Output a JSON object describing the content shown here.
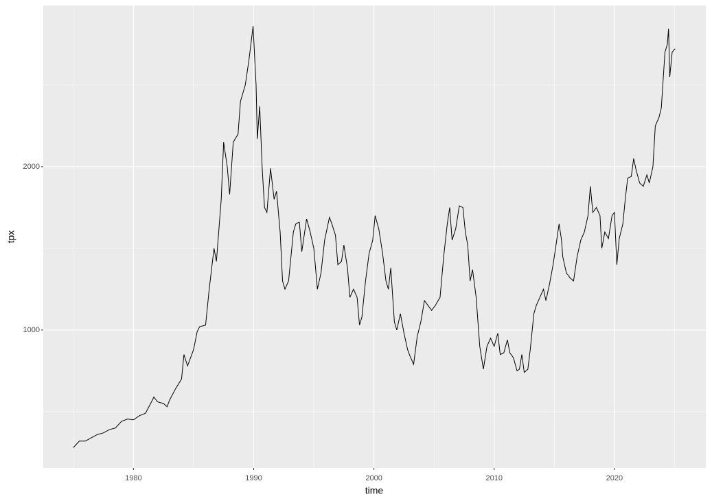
{
  "chart_data": {
    "type": "line",
    "x_label": "time",
    "y_label": "tpx",
    "color": "#000000",
    "grid": true,
    "xlim": [
      1972.5,
      2027.6
    ],
    "ylim": [
      155,
      2987
    ],
    "xticks": [
      1980,
      1990,
      2000,
      2010,
      2020
    ],
    "minor_xticks": [
      1975,
      1985,
      1995,
      2005,
      2015,
      2025
    ],
    "yticks": [
      1000,
      2000
    ],
    "minor_yticks": [
      500,
      1500,
      2500
    ],
    "x": [
      1975.0,
      1975.5,
      1976.0,
      1976.5,
      1977.0,
      1977.5,
      1978.0,
      1978.5,
      1979.0,
      1979.5,
      1980.0,
      1980.5,
      1981.0,
      1981.5,
      1981.7,
      1982.0,
      1982.5,
      1982.8,
      1983.0,
      1983.5,
      1984.0,
      1984.2,
      1984.5,
      1985.0,
      1985.3,
      1985.5,
      1986.0,
      1986.3,
      1986.7,
      1986.9,
      1987.3,
      1987.5,
      1987.8,
      1988.0,
      1988.3,
      1988.7,
      1988.9,
      1989.3,
      1989.6,
      1989.95,
      1990.2,
      1990.3,
      1990.5,
      1990.7,
      1990.9,
      1991.1,
      1991.4,
      1991.7,
      1991.9,
      1992.2,
      1992.4,
      1992.6,
      1992.9,
      1993.3,
      1993.5,
      1993.8,
      1994.0,
      1994.4,
      1994.7,
      1995.0,
      1995.3,
      1995.6,
      1995.9,
      1996.3,
      1996.5,
      1996.8,
      1997.0,
      1997.3,
      1997.5,
      1997.8,
      1998.0,
      1998.3,
      1998.6,
      1998.8,
      1999.0,
      1999.3,
      1999.6,
      1999.9,
      2000.1,
      2000.4,
      2000.7,
      2001.0,
      2001.2,
      2001.4,
      2001.7,
      2001.9,
      2002.2,
      2002.5,
      2002.8,
      2003.0,
      2003.3,
      2003.6,
      2003.9,
      2004.2,
      2004.5,
      2004.8,
      2005.1,
      2005.5,
      2005.8,
      2006.1,
      2006.3,
      2006.5,
      2006.8,
      2007.1,
      2007.4,
      2007.6,
      2007.8,
      2008.0,
      2008.2,
      2008.5,
      2008.8,
      2009.1,
      2009.4,
      2009.7,
      2010.0,
      2010.3,
      2010.5,
      2010.8,
      2011.1,
      2011.3,
      2011.6,
      2011.9,
      2012.1,
      2012.3,
      2012.5,
      2012.8,
      2013.0,
      2013.3,
      2013.5,
      2013.8,
      2014.1,
      2014.3,
      2014.6,
      2014.9,
      2015.2,
      2015.4,
      2015.6,
      2015.7,
      2016.0,
      2016.3,
      2016.6,
      2016.9,
      2017.2,
      2017.5,
      2017.8,
      2018.0,
      2018.2,
      2018.5,
      2018.8,
      2018.95,
      2019.2,
      2019.5,
      2019.8,
      2020.0,
      2020.2,
      2020.4,
      2020.7,
      2020.9,
      2021.1,
      2021.4,
      2021.6,
      2021.8,
      2022.1,
      2022.4,
      2022.7,
      2022.9,
      2023.2,
      2023.4,
      2023.7,
      2023.9,
      2024.2,
      2024.4,
      2024.5,
      2024.6,
      2024.8,
      2025.0,
      2025.08
    ],
    "values": [
      280,
      320,
      320,
      340,
      360,
      370,
      390,
      400,
      440,
      455,
      450,
      475,
      490,
      560,
      590,
      560,
      550,
      530,
      570,
      640,
      700,
      850,
      780,
      880,
      990,
      1020,
      1030,
      1250,
      1500,
      1420,
      1800,
      2150,
      2000,
      1830,
      2150,
      2200,
      2400,
      2500,
      2650,
      2860,
      2500,
      2170,
      2370,
      2000,
      1750,
      1720,
      1990,
      1800,
      1850,
      1600,
      1300,
      1250,
      1300,
      1600,
      1650,
      1660,
      1480,
      1680,
      1600,
      1500,
      1250,
      1350,
      1550,
      1690,
      1650,
      1580,
      1400,
      1420,
      1520,
      1380,
      1200,
      1250,
      1200,
      1030,
      1080,
      1300,
      1470,
      1550,
      1700,
      1620,
      1480,
      1300,
      1250,
      1380,
      1050,
      1000,
      1100,
      980,
      880,
      840,
      790,
      960,
      1050,
      1180,
      1150,
      1120,
      1150,
      1200,
      1450,
      1650,
      1750,
      1550,
      1620,
      1760,
      1750,
      1600,
      1520,
      1300,
      1370,
      1200,
      900,
      760,
      900,
      950,
      900,
      980,
      850,
      860,
      940,
      860,
      830,
      750,
      760,
      850,
      740,
      760,
      880,
      1100,
      1150,
      1200,
      1250,
      1180,
      1280,
      1400,
      1550,
      1650,
      1550,
      1450,
      1350,
      1320,
      1300,
      1450,
      1550,
      1600,
      1700,
      1880,
      1720,
      1750,
      1700,
      1500,
      1600,
      1560,
      1700,
      1720,
      1400,
      1560,
      1650,
      1800,
      1930,
      1940,
      2050,
      1980,
      1900,
      1880,
      1950,
      1900,
      2000,
      2250,
      2300,
      2360,
      2700,
      2750,
      2845,
      2550,
      2700,
      2720,
      2720
    ]
  }
}
